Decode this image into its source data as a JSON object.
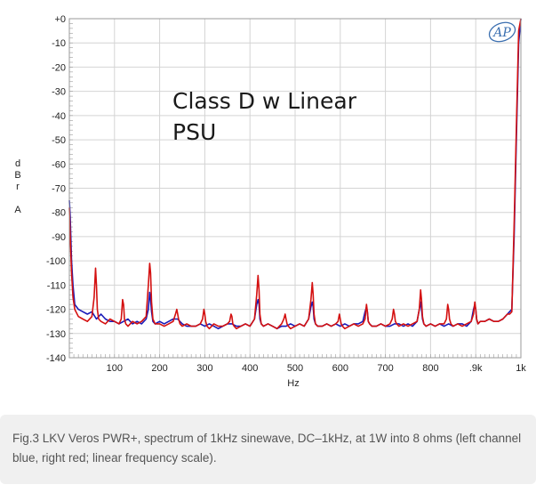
{
  "chart_data": {
    "type": "line",
    "annotation": "Class D w Linear PSU",
    "annotation_lines": [
      "Class D w Linear",
      "PSU"
    ],
    "xlabel": "Hz",
    "ylabel": "dBr A",
    "ylabel_chars": [
      "d",
      "B",
      "r",
      "",
      "A"
    ],
    "xlim": [
      0,
      1000
    ],
    "ylim": [
      -140,
      0
    ],
    "grid": true,
    "legend": "none",
    "x_ticks": [
      {
        "value": 100,
        "label": "100"
      },
      {
        "value": 200,
        "label": "200"
      },
      {
        "value": 300,
        "label": "300"
      },
      {
        "value": 400,
        "label": "400"
      },
      {
        "value": 500,
        "label": "500"
      },
      {
        "value": 600,
        "label": "600"
      },
      {
        "value": 700,
        "label": "700"
      },
      {
        "value": 800,
        "label": "800"
      },
      {
        "value": 900,
        "label": ".9k"
      },
      {
        "value": 1000,
        "label": "1k"
      }
    ],
    "y_ticks": [
      {
        "value": 0,
        "label": "+0"
      },
      {
        "value": -10,
        "label": "-10"
      },
      {
        "value": -20,
        "label": "-20"
      },
      {
        "value": -30,
        "label": "-30"
      },
      {
        "value": -40,
        "label": "-40"
      },
      {
        "value": -50,
        "label": "-50"
      },
      {
        "value": -60,
        "label": "-60"
      },
      {
        "value": -70,
        "label": "-70"
      },
      {
        "value": -80,
        "label": "-80"
      },
      {
        "value": -90,
        "label": "-90"
      },
      {
        "value": -100,
        "label": "-100"
      },
      {
        "value": -110,
        "label": "-110"
      },
      {
        "value": -120,
        "label": "-120"
      },
      {
        "value": -130,
        "label": "-130"
      },
      {
        "value": -140,
        "label": "-140"
      }
    ],
    "series": [
      {
        "color": "#1a1ab8",
        "x": [
          0,
          2,
          5,
          8,
          12,
          20,
          30,
          40,
          50,
          60,
          70,
          80,
          90,
          100,
          110,
          120,
          130,
          140,
          150,
          160,
          170,
          175,
          178,
          180,
          182,
          185,
          190,
          200,
          210,
          220,
          230,
          240,
          250,
          260,
          270,
          280,
          290,
          300,
          310,
          320,
          330,
          340,
          350,
          360,
          370,
          380,
          390,
          400,
          410,
          415,
          418,
          420,
          422,
          425,
          430,
          440,
          450,
          460,
          470,
          480,
          490,
          500,
          510,
          520,
          530,
          535,
          538,
          540,
          542,
          545,
          550,
          560,
          570,
          580,
          590,
          600,
          610,
          620,
          630,
          640,
          650,
          655,
          658,
          660,
          662,
          665,
          670,
          680,
          690,
          700,
          710,
          720,
          730,
          740,
          750,
          760,
          770,
          775,
          778,
          780,
          782,
          785,
          790,
          800,
          810,
          820,
          830,
          840,
          850,
          860,
          870,
          880,
          890,
          895,
          898,
          900,
          902,
          905,
          910,
          920,
          930,
          940,
          950,
          960,
          970,
          975,
          980,
          985,
          990,
          995,
          1000
        ],
        "y": [
          -75,
          -82,
          -100,
          -110,
          -118,
          -120,
          -121,
          -122,
          -121,
          -124,
          -122,
          -124,
          -125,
          -125,
          -126,
          -125,
          -124,
          -126,
          -125,
          -126,
          -124,
          -120,
          -113,
          -116,
          -121,
          -125,
          -126,
          -125,
          -126,
          -125,
          -124,
          -124,
          -126,
          -127,
          -127,
          -127,
          -126,
          -127,
          -126,
          -127,
          -128,
          -127,
          -126,
          -126,
          -127,
          -127,
          -126,
          -127,
          -124,
          -118,
          -116,
          -118,
          -124,
          -126,
          -127,
          -126,
          -127,
          -128,
          -127,
          -127,
          -126,
          -127,
          -126,
          -127,
          -124,
          -119,
          -117,
          -119,
          -124,
          -126,
          -127,
          -127,
          -126,
          -127,
          -126,
          -127,
          -126,
          -127,
          -126,
          -126,
          -125,
          -121,
          -119,
          -121,
          -125,
          -126,
          -127,
          -127,
          -126,
          -127,
          -127,
          -126,
          -126,
          -127,
          -126,
          -127,
          -125,
          -120,
          -117,
          -120,
          -124,
          -126,
          -127,
          -126,
          -127,
          -126,
          -127,
          -126,
          -127,
          -126,
          -126,
          -127,
          -125,
          -120,
          -118,
          -120,
          -124,
          -126,
          -125,
          -125,
          -124,
          -125,
          -125,
          -124,
          -122,
          -121,
          -120,
          -90,
          -50,
          -10,
          0
        ]
      },
      {
        "color": "#d41010",
        "x": [
          0,
          2,
          5,
          8,
          12,
          20,
          30,
          40,
          50,
          55,
          58,
          60,
          62,
          65,
          70,
          80,
          90,
          100,
          110,
          115,
          118,
          120,
          122,
          125,
          130,
          140,
          150,
          160,
          170,
          175,
          178,
          180,
          182,
          185,
          190,
          200,
          210,
          220,
          230,
          235,
          238,
          240,
          242,
          245,
          250,
          260,
          270,
          280,
          290,
          295,
          298,
          300,
          302,
          305,
          310,
          320,
          330,
          340,
          350,
          355,
          358,
          360,
          362,
          365,
          370,
          380,
          390,
          400,
          410,
          415,
          418,
          420,
          422,
          425,
          430,
          440,
          450,
          460,
          470,
          475,
          478,
          480,
          482,
          485,
          490,
          500,
          510,
          520,
          530,
          535,
          538,
          540,
          542,
          545,
          550,
          560,
          570,
          580,
          590,
          595,
          598,
          600,
          602,
          605,
          610,
          620,
          630,
          640,
          650,
          655,
          658,
          660,
          662,
          665,
          670,
          680,
          690,
          700,
          710,
          715,
          718,
          720,
          722,
          725,
          730,
          740,
          750,
          760,
          770,
          775,
          778,
          780,
          782,
          785,
          790,
          800,
          810,
          820,
          830,
          835,
          838,
          840,
          842,
          845,
          850,
          860,
          870,
          880,
          890,
          895,
          898,
          900,
          902,
          905,
          910,
          920,
          930,
          940,
          950,
          960,
          970,
          975,
          980,
          985,
          990,
          995,
          1000
        ],
        "y": [
          -78,
          -90,
          -105,
          -115,
          -120,
          -123,
          -124,
          -125,
          -123,
          -115,
          -103,
          -110,
          -120,
          -124,
          -125,
          -126,
          -124,
          -125,
          -126,
          -124,
          -116,
          -118,
          -124,
          -126,
          -127,
          -125,
          -126,
          -125,
          -123,
          -110,
          -101,
          -105,
          -117,
          -124,
          -126,
          -126,
          -127,
          -126,
          -125,
          -122,
          -120,
          -122,
          -124,
          -126,
          -127,
          -126,
          -127,
          -127,
          -126,
          -124,
          -120,
          -122,
          -125,
          -127,
          -128,
          -126,
          -127,
          -127,
          -126,
          -125,
          -122,
          -123,
          -126,
          -127,
          -128,
          -127,
          -126,
          -127,
          -124,
          -114,
          -106,
          -112,
          -122,
          -126,
          -127,
          -126,
          -127,
          -128,
          -126,
          -124,
          -122,
          -124,
          -126,
          -127,
          -128,
          -127,
          -126,
          -127,
          -124,
          -116,
          -109,
          -114,
          -122,
          -126,
          -127,
          -127,
          -126,
          -127,
          -126,
          -125,
          -122,
          -124,
          -126,
          -127,
          -128,
          -127,
          -126,
          -127,
          -126,
          -124,
          -118,
          -121,
          -125,
          -126,
          -127,
          -127,
          -126,
          -127,
          -126,
          -124,
          -120,
          -122,
          -125,
          -126,
          -127,
          -126,
          -127,
          -126,
          -125,
          -120,
          -112,
          -116,
          -123,
          -126,
          -127,
          -126,
          -127,
          -126,
          -126,
          -124,
          -118,
          -120,
          -124,
          -126,
          -127,
          -126,
          -127,
          -126,
          -125,
          -122,
          -117,
          -120,
          -124,
          -126,
          -125,
          -125,
          -124,
          -125,
          -125,
          -124,
          -122,
          -122,
          -121,
          -85,
          -45,
          -5,
          0
        ]
      }
    ]
  },
  "logo": {
    "text": "AP",
    "name": "ap-logo"
  },
  "caption": "Fig.3 LKV Veros PWR+, spectrum of 1kHz sinewave, DC–1kHz, at 1W into 8 ohms (left channel blue, right red; linear frequency scale)."
}
